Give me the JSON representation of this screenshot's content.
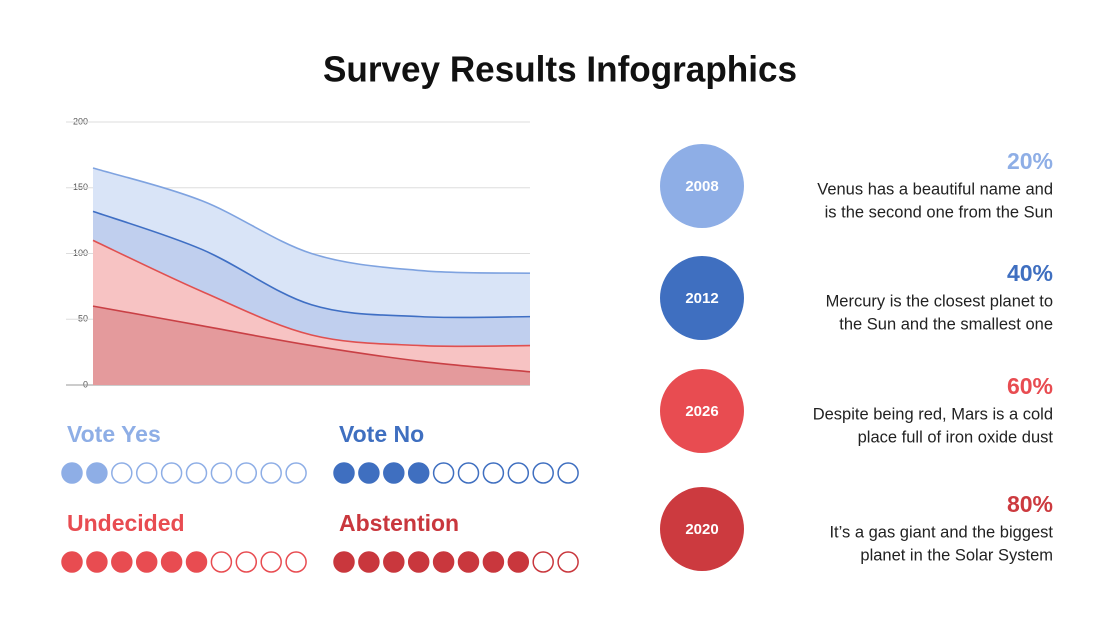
{
  "title": "Survey Results Infographics",
  "chart_data": {
    "type": "area",
    "categories": [
      null,
      null,
      null,
      null,
      null
    ],
    "series": [
      {
        "color": "#7fa3e0",
        "fill": "#d9e4f7",
        "values": [
          165,
          140,
          100,
          87,
          85
        ]
      },
      {
        "color": "#3f6fc4",
        "fill": "#c0cfee",
        "values": [
          132,
          103,
          61,
          52,
          52
        ]
      },
      {
        "color": "#e05050",
        "fill": "#f7c3c3",
        "values": [
          110,
          71,
          38,
          30,
          30
        ]
      },
      {
        "color": "#c94045",
        "fill": "#e49a9c",
        "values": [
          60,
          45,
          30,
          18,
          10
        ]
      }
    ],
    "ylim": [
      0,
      200
    ],
    "yticks": [
      0,
      50,
      100,
      150,
      200
    ],
    "grid": true
  },
  "votes": [
    {
      "label": "Vote Yes",
      "filled": 2,
      "total": 10,
      "color": "#8eaee6"
    },
    {
      "label": "Vote No",
      "filled": 4,
      "total": 10,
      "color": "#3f6fc0"
    },
    {
      "label": "Undecided",
      "filled": 6,
      "total": 10,
      "color": "#e84c51"
    },
    {
      "label": "Abstention",
      "filled": 8,
      "total": 10,
      "color": "#c9373d"
    }
  ],
  "items": [
    {
      "year": "2008",
      "percent": "20%",
      "color": "#8eaee6",
      "lines": [
        "Venus has a beautiful name and",
        "is the second one from the Sun"
      ]
    },
    {
      "year": "2012",
      "percent": "40%",
      "color": "#3f6fc0",
      "lines": [
        "Mercury is the closest planet to",
        "the Sun and the smallest one"
      ]
    },
    {
      "year": "2026",
      "percent": "60%",
      "color": "#e84c51",
      "lines": [
        "Despite being red, Mars is a cold",
        "place full of iron oxide dust"
      ]
    },
    {
      "year": "2020",
      "percent": "80%",
      "color": "#cc3a3f",
      "lines": [
        "It’s a gas giant and the biggest",
        "planet in the Solar System"
      ]
    }
  ]
}
